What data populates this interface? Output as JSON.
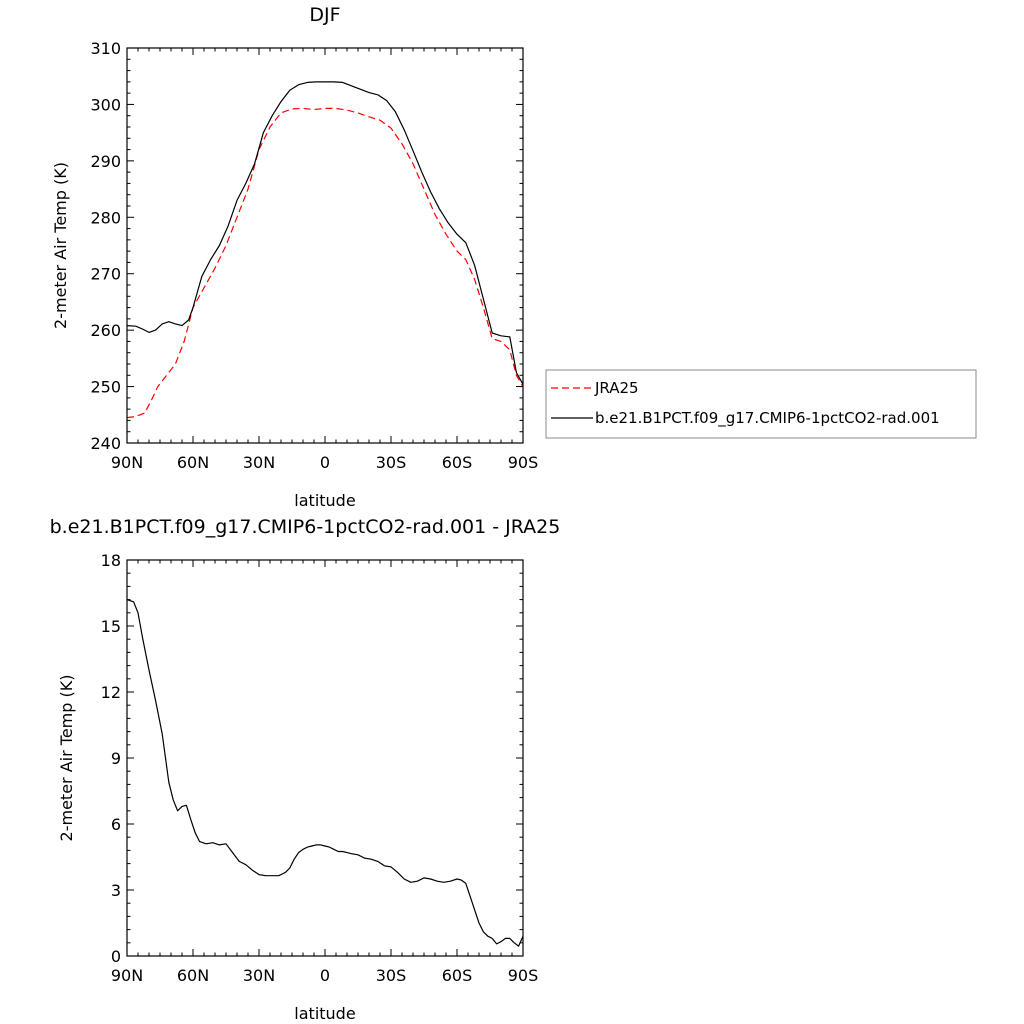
{
  "chart_data": [
    {
      "type": "line",
      "title": "DJF",
      "xlabel": "latitude",
      "ylabel": "2-meter Air Temp (K)",
      "xlim": [
        90,
        -90
      ],
      "ylim": [
        240,
        310
      ],
      "xticks": [
        90,
        60,
        30,
        0,
        -30,
        -60,
        -90
      ],
      "xtick_labels": [
        "90N",
        "60N",
        "30N",
        "0",
        "30S",
        "60S",
        "90S"
      ],
      "yticks": [
        240,
        250,
        260,
        270,
        280,
        290,
        300,
        310
      ],
      "ytick_labels": [
        "240",
        "250",
        "260",
        "270",
        "280",
        "290",
        "300",
        "310"
      ],
      "legend": [
        {
          "label": "JRA25",
          "color": "#ff0000",
          "dash": "dashed"
        },
        {
          "label": "b.e21.B1PCT.f09_g17.CMIP6-1pctCO2-rad.001",
          "color": "#000000",
          "dash": "solid"
        }
      ],
      "series": [
        {
          "name": "JRA25",
          "color": "#ff0000",
          "dash": "dashed",
          "x": [
            90,
            86,
            82,
            79,
            76,
            72,
            68,
            64,
            60,
            55,
            50,
            45,
            40,
            35,
            30,
            25,
            20,
            15,
            10,
            5,
            0,
            -5,
            -10,
            -15,
            -20,
            -25,
            -30,
            -35,
            -40,
            -45,
            -50,
            -55,
            -60,
            -64,
            -68,
            -72,
            -76,
            -80,
            -84,
            -87,
            -90
          ],
          "y": [
            244.5,
            244.7,
            245.3,
            247.5,
            250,
            252,
            254,
            258,
            264,
            267.5,
            271,
            275,
            280,
            285,
            292,
            296,
            298.5,
            299.2,
            299.3,
            299.1,
            299.3,
            299.3,
            299,
            298.5,
            297.8,
            297.2,
            295.8,
            293,
            289.5,
            285,
            280.5,
            277,
            274,
            272.5,
            269,
            264,
            258.5,
            258,
            256.5,
            252,
            250
          ]
        },
        {
          "name": "b.e21.B1PCT.f09_g17.CMIP6-1pctCO2-rad.001",
          "color": "#000000",
          "dash": "solid",
          "x": [
            90,
            86,
            83,
            80,
            77,
            74,
            71,
            68,
            65,
            62,
            60,
            56,
            52,
            48,
            44,
            40,
            36,
            32,
            28,
            24,
            20,
            16,
            12,
            8,
            4,
            0,
            -4,
            -8,
            -12,
            -16,
            -20,
            -24,
            -28,
            -32,
            -36,
            -40,
            -44,
            -48,
            -52,
            -56,
            -60,
            -64,
            -68,
            -72,
            -76,
            -80,
            -84,
            -87,
            -90
          ],
          "y": [
            260.8,
            260.7,
            260.2,
            259.6,
            260,
            261.1,
            261.5,
            261.1,
            260.8,
            261.8,
            264,
            269.5,
            272.5,
            275,
            278.5,
            283,
            286,
            289.5,
            295,
            298,
            300.5,
            302.5,
            303.5,
            303.9,
            304,
            304,
            304,
            303.9,
            303.3,
            302.7,
            302.1,
            301.7,
            300.7,
            298.7,
            295.5,
            291.8,
            288,
            284.5,
            281.5,
            279,
            277,
            275.5,
            271.5,
            265.5,
            259.5,
            259,
            258.8,
            252.5,
            250.4
          ]
        }
      ]
    },
    {
      "type": "line",
      "title": "b.e21.B1PCT.f09_g17.CMIP6-1pctCO2-rad.001 - JRA25",
      "xlabel": "latitude",
      "ylabel": "2-meter Air Temp (K)",
      "xlim": [
        90,
        -90
      ],
      "ylim": [
        0,
        18
      ],
      "xticks": [
        90,
        60,
        30,
        0,
        -30,
        -60,
        -90
      ],
      "xtick_labels": [
        "90N",
        "60N",
        "30N",
        "0",
        "30S",
        "60S",
        "90S"
      ],
      "yticks": [
        0,
        3,
        6,
        9,
        12,
        15,
        18
      ],
      "ytick_labels": [
        "0",
        "3",
        "6",
        "9",
        "12",
        "15",
        "18"
      ],
      "series": [
        {
          "name": "b.e21.B1PCT.f09_g17.CMIP6-1pctCO2-rad.001 - JRA25",
          "color": "#000000",
          "dash": "solid",
          "x": [
            90,
            87,
            85,
            83,
            80,
            77,
            74,
            71,
            69,
            67,
            65,
            63,
            61,
            59,
            57,
            54,
            51,
            48,
            45,
            42,
            39,
            36,
            33,
            30,
            27,
            24,
            21,
            18,
            16,
            14,
            12,
            10,
            8,
            6,
            4,
            2,
            0,
            -2,
            -4,
            -6,
            -8,
            -10,
            -12,
            -15,
            -18,
            -21,
            -24,
            -27,
            -30,
            -33,
            -36,
            -39,
            -42,
            -45,
            -48,
            -51,
            -54,
            -57,
            -60,
            -62,
            -64,
            -66,
            -68,
            -70,
            -72,
            -74,
            -76,
            -78,
            -80,
            -82,
            -84,
            -86,
            -88,
            -90
          ],
          "y": [
            16.2,
            16.1,
            15.6,
            14.5,
            13,
            11.6,
            10.1,
            7.9,
            7.1,
            6.6,
            6.8,
            6.85,
            6.2,
            5.6,
            5.2,
            5.1,
            5.15,
            5.05,
            5.1,
            4.7,
            4.3,
            4.15,
            3.9,
            3.7,
            3.65,
            3.65,
            3.65,
            3.8,
            4,
            4.4,
            4.7,
            4.85,
            4.95,
            5.0,
            5.05,
            5.05,
            5.0,
            4.95,
            4.85,
            4.75,
            4.75,
            4.7,
            4.65,
            4.6,
            4.45,
            4.4,
            4.3,
            4.1,
            4.05,
            3.8,
            3.5,
            3.35,
            3.4,
            3.55,
            3.5,
            3.4,
            3.35,
            3.4,
            3.5,
            3.45,
            3.3,
            2.7,
            2.1,
            1.5,
            1.1,
            0.9,
            0.8,
            0.55,
            0.65,
            0.8,
            0.8,
            0.6,
            0.45,
            0.9
          ]
        }
      ]
    }
  ]
}
